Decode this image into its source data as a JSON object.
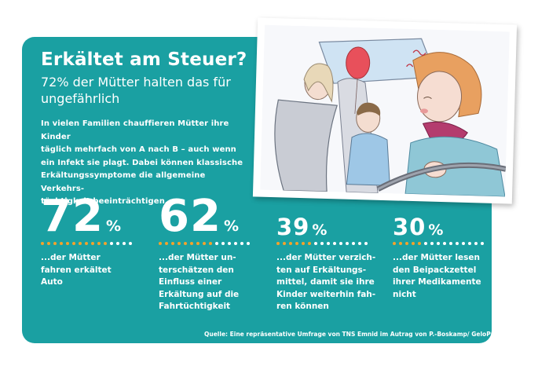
{
  "title": "Erkältet am Steuer?",
  "subtitle": "72% der Mütter halten das für ungefährlich",
  "intro_lines": [
    "In vielen Familien chauffieren Mütter ihre Kinder",
    "täglich mehrfach von A nach B – auch wenn",
    "ein Infekt sie plagt. Dabei können klassische",
    "Erkältungssymptome die allgemeine Verkehrs-",
    "tüchtigkeit beeinträchtigen."
  ],
  "stats": [
    {
      "value": "72",
      "unit": "%",
      "desc_lines": [
        "...der Mütter",
        "fahren erkältet",
        "Auto"
      ]
    },
    {
      "value": "62",
      "unit": "%",
      "desc_lines": [
        "...der Mütter un-",
        "terschätzen den",
        "Einfluss einer",
        "Erkältung auf die",
        "Fahrtüchtigkeit"
      ]
    },
    {
      "value": "39",
      "unit": "%",
      "desc_lines": [
        "...der Mütter verzich-",
        "ten auf Erkältungs-",
        "mittel, damit sie ihre",
        "Kinder weiterhin fah-",
        "ren können"
      ]
    },
    {
      "value": "30",
      "unit": "%",
      "desc_lines": [
        "...der Mütter lesen",
        "den Beipackzettel",
        "ihrer Medikamente",
        "nicht"
      ]
    }
  ],
  "source": "Quelle: Eine repräsentative Umfrage von TNS Emnid im Autrag von P.-Boskamp/ GeloProsed",
  "colors": {
    "panel": "#1aa0a2",
    "accent_dot": "#f4a22b",
    "text": "#ffffff"
  },
  "illustration": {
    "description_icon": "sick-mother-driving-illustration"
  }
}
